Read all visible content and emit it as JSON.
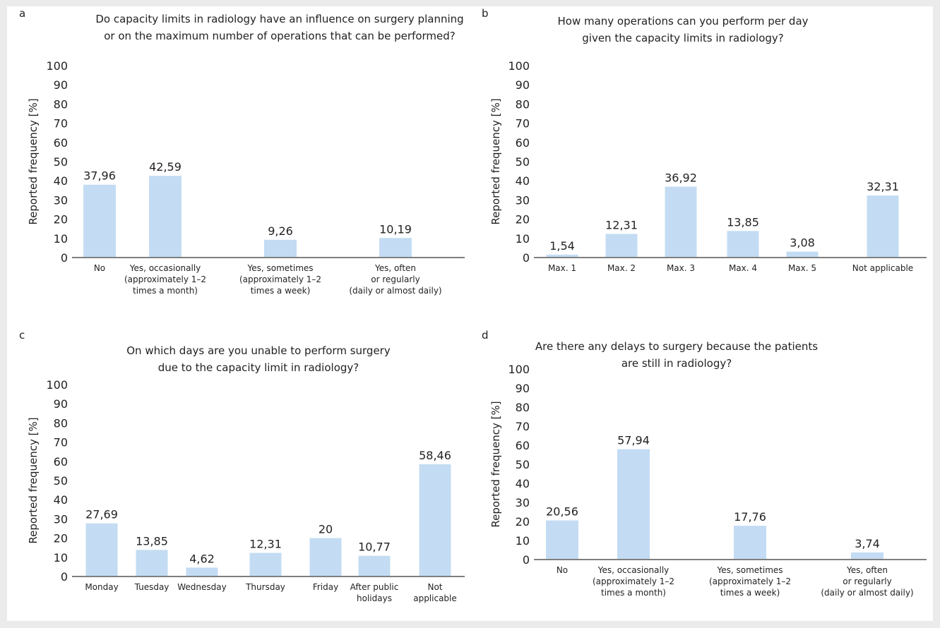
{
  "chart_data": [
    {
      "panel": "a",
      "type": "bar",
      "title": [
        "Do capacity limits in radiology have an influence on surgery planning",
        "or on the maximum number of operations that can be performed?"
      ],
      "ylabel": "Reported frequency [%]",
      "ylim": [
        0,
        100
      ],
      "yticks": [
        "0",
        "10",
        "20",
        "30",
        "40",
        "50",
        "60",
        "70",
        "80",
        "90",
        "100"
      ],
      "categories": [
        [
          "No"
        ],
        [
          "Yes, occasionally",
          "(approximately 1–2",
          "times a month)"
        ],
        [
          "Yes, sometimes",
          "(approximately 1–2",
          "times a week)"
        ],
        [
          "Yes, often",
          "or regularly",
          "(daily or almost daily)"
        ]
      ],
      "values": [
        37.96,
        42.59,
        9.26,
        10.19
      ],
      "value_labels": [
        "37,96",
        "42,59",
        "9,26",
        "10,19"
      ],
      "bar_color": "#c3dcf3",
      "grid": false,
      "legend": "none"
    },
    {
      "panel": "b",
      "type": "bar",
      "title": [
        "How many operations can you perform per day",
        "given the capacity limits in radiology?"
      ],
      "ylabel": "Reported frequency [%]",
      "ylim": [
        0,
        100
      ],
      "yticks": [
        "0",
        "10",
        "20",
        "30",
        "40",
        "50",
        "60",
        "70",
        "80",
        "90",
        "100"
      ],
      "categories": [
        [
          "Max. 1"
        ],
        [
          "Max. 2"
        ],
        [
          "Max. 3"
        ],
        [
          "Max. 4"
        ],
        [
          "Max. 5"
        ],
        [
          "Not applicable"
        ]
      ],
      "values": [
        1.54,
        12.31,
        36.92,
        13.85,
        3.08,
        32.31
      ],
      "value_labels": [
        "1,54",
        "12,31",
        "36,92",
        "13,85",
        "3,08",
        "32,31"
      ],
      "bar_color": "#c3dcf3",
      "grid": false,
      "legend": "none"
    },
    {
      "panel": "c",
      "type": "bar",
      "title": [
        "On which days are you unable to perform surgery",
        "due to the capacity limit in radiology?"
      ],
      "ylabel": "Reported frequency [%]",
      "ylim": [
        0,
        100
      ],
      "yticks": [
        "0",
        "10",
        "20",
        "30",
        "40",
        "50",
        "60",
        "70",
        "80",
        "90",
        "100"
      ],
      "categories": [
        [
          "Monday"
        ],
        [
          "Tuesday"
        ],
        [
          "Wednesday"
        ],
        [
          "Thursday"
        ],
        [
          "Friday"
        ],
        [
          "After public",
          "holidays"
        ],
        [
          "Not",
          "applicable"
        ]
      ],
      "values": [
        27.69,
        13.85,
        4.62,
        12.31,
        20,
        10.77,
        58.46
      ],
      "value_labels": [
        "27,69",
        "13,85",
        "4,62",
        "12,31",
        "20",
        "10,77",
        "58,46"
      ],
      "bar_color": "#c3dcf3",
      "grid": false,
      "legend": "none"
    },
    {
      "panel": "d",
      "type": "bar",
      "title": [
        "Are there any delays to surgery because the patients",
        "are still in radiology?"
      ],
      "ylabel": "Reported frequency [%]",
      "ylim": [
        0,
        100
      ],
      "yticks": [
        "0",
        "10",
        "20",
        "30",
        "40",
        "50",
        "60",
        "70",
        "80",
        "90",
        "100"
      ],
      "categories": [
        [
          "No"
        ],
        [
          "Yes, occasionally",
          "(approximately 1–2",
          "times a month)"
        ],
        [
          "Yes, sometimes",
          "(approximately 1–2",
          "times a week)"
        ],
        [
          "Yes, often",
          "or regularly",
          "(daily or almost daily)"
        ]
      ],
      "values": [
        20.56,
        57.94,
        17.76,
        3.74
      ],
      "value_labels": [
        "20,56",
        "57,94",
        "17,76",
        "3,74"
      ],
      "bar_color": "#c3dcf3",
      "grid": false,
      "legend": "none"
    }
  ]
}
